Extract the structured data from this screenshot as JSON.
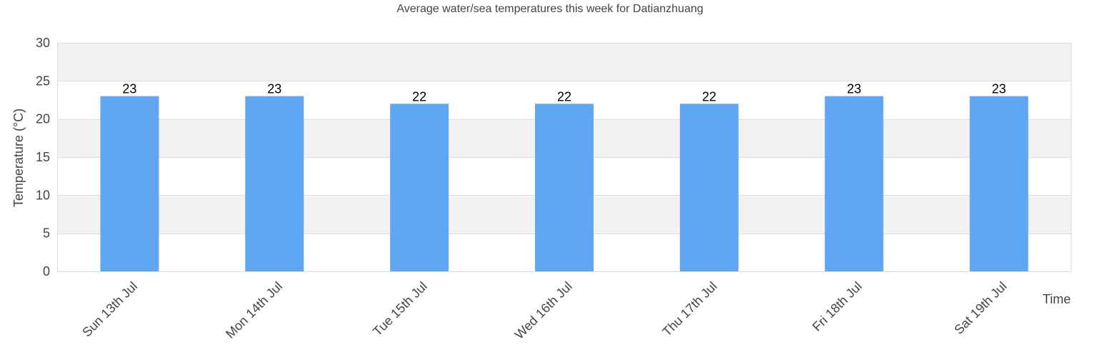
{
  "chart_data": {
    "type": "bar",
    "title": "Average water/sea temperatures this week for Datianzhuang",
    "xlabel": "Time",
    "ylabel": "Temperature (°C)",
    "categories": [
      "Sun 13th Jul",
      "Mon 14th Jul",
      "Tue 15th Jul",
      "Wed 16th Jul",
      "Thu 17th Jul",
      "Fri 18th Jul",
      "Sat 19th Jul"
    ],
    "values": [
      23,
      23,
      22,
      22,
      22,
      23,
      23
    ],
    "ylim": [
      0,
      30
    ],
    "yticks": [
      0,
      5,
      10,
      15,
      20,
      25,
      30
    ],
    "grid": true,
    "legend": "none",
    "colors": {
      "bar": "#60a7f3",
      "band_alt": "#f2f2f2",
      "band": "#ffffff",
      "gridline": "#dddddd",
      "text": "#444444",
      "data_label": "#000000"
    }
  }
}
